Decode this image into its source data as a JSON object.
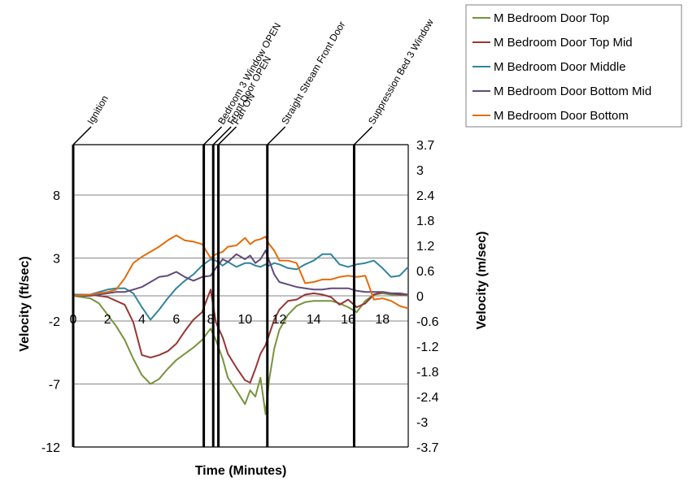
{
  "chart_data": {
    "type": "line",
    "xlabel": "Time (Minutes)",
    "ylabel": "Velocity (ft/sec)",
    "ylabel_right": "Velocity (m/sec)",
    "xlim": [
      0,
      19.5
    ],
    "ylim": [
      -12,
      12
    ],
    "ylim_right": [
      -3.7,
      3.7
    ],
    "x_ticks": [
      0,
      2,
      4,
      6,
      8,
      10,
      12,
      14,
      16,
      18
    ],
    "y_ticks": [
      -12,
      -7,
      -2,
      3,
      8
    ],
    "y_ticks_right": [
      "3.7",
      "3",
      "2.4",
      "1.8",
      "1.2",
      "0.6",
      "0",
      "-0.6",
      "-1.2",
      "-1.8",
      "-2.4",
      "-3",
      "-3.7"
    ],
    "grid": "horizontal",
    "legend_position": "top-right",
    "events": [
      {
        "label": "Ignition",
        "x": 0
      },
      {
        "label": "Bedroom 3 Window OPEN",
        "x": 7.6
      },
      {
        "label": "Front Door OPEN",
        "x": 8.15
      },
      {
        "label": "Fan ON",
        "x": 8.45
      },
      {
        "label": "Straight Stream Front Door",
        "x": 11.3
      },
      {
        "label": "Suppression Bed 3 Window",
        "x": 16.35
      }
    ],
    "series": [
      {
        "name": "M Bedroom Door Top",
        "color": "#77933C",
        "x": [
          0,
          1,
          1.5,
          2,
          2.5,
          3,
          3.5,
          4,
          4.5,
          5,
          5.5,
          6,
          6.5,
          7,
          7.5,
          8,
          8.3,
          8.7,
          9,
          9.5,
          10,
          10.3,
          10.6,
          10.9,
          11.2,
          11.4,
          11.7,
          12,
          12.5,
          13,
          13.5,
          14,
          14.5,
          15,
          15.5,
          16,
          16.5,
          17,
          17.5,
          18,
          18.5,
          19,
          19.5
        ],
        "y": [
          0,
          -0.2,
          -0.6,
          -1.5,
          -2.4,
          -3.5,
          -5,
          -6.3,
          -7,
          -6.6,
          -5.8,
          -5.1,
          -4.6,
          -4.1,
          -3.5,
          -2.6,
          -3.5,
          -5,
          -6.5,
          -7.5,
          -8.6,
          -7.5,
          -8,
          -6.5,
          -9.4,
          -6.7,
          -4.2,
          -2.7,
          -1.5,
          -0.8,
          -0.5,
          -0.4,
          -0.4,
          -0.4,
          -0.6,
          -0.9,
          -1.3,
          -0.4,
          0.1,
          0.2,
          0.1,
          0.1,
          0
        ]
      },
      {
        "name": "M Bedroom Door Top Mid",
        "color": "#953735",
        "x": [
          0,
          1,
          1.5,
          2,
          2.5,
          3,
          3.5,
          4,
          4.5,
          5,
          5.5,
          6,
          6.5,
          7,
          7.5,
          8,
          8.3,
          8.7,
          9,
          9.5,
          10,
          10.3,
          10.6,
          10.9,
          11.2,
          11.4,
          11.7,
          12,
          12.5,
          13,
          13.5,
          14,
          14.5,
          15,
          15.5,
          16,
          16.5,
          17,
          17.5,
          18,
          18.5,
          19,
          19.5
        ],
        "y": [
          0,
          0.1,
          0,
          -0.1,
          -0.4,
          -0.7,
          -2.1,
          -4.7,
          -4.9,
          -4.7,
          -4.4,
          -3.8,
          -2.8,
          -1.9,
          -1.3,
          0.5,
          -2.1,
          -3.3,
          -4.6,
          -5.7,
          -6.7,
          -6.9,
          -5.8,
          -4.6,
          -3.9,
          -3.1,
          -1.9,
          -1.1,
          -0.4,
          -0.3,
          0.1,
          0.2,
          0.1,
          -0.1,
          -0.7,
          -0.3,
          -0.9,
          -0.6,
          0.1,
          0.3,
          0.2,
          0.1,
          0.1
        ]
      },
      {
        "name": "M Bedroom Door Middle",
        "color": "#31859C",
        "x": [
          0,
          1,
          1.5,
          2,
          2.5,
          3,
          3.5,
          4,
          4.5,
          5,
          5.5,
          6,
          6.5,
          7,
          7.5,
          8,
          8.3,
          8.7,
          9,
          9.5,
          10,
          10.3,
          10.6,
          10.9,
          11.2,
          11.4,
          11.7,
          12,
          12.5,
          13,
          13.5,
          14,
          14.5,
          15,
          15.5,
          16,
          16.5,
          17,
          17.5,
          18,
          18.5,
          19,
          19.5
        ],
        "y": [
          0.1,
          0.1,
          0.3,
          0.5,
          0.6,
          0.6,
          0.2,
          -0.9,
          -1.9,
          -1.1,
          -0.2,
          0.6,
          1.2,
          1.7,
          2.4,
          2.9,
          2.8,
          2.4,
          2.7,
          2.3,
          2.6,
          2.6,
          2.4,
          2.3,
          2.5,
          2.4,
          2.6,
          2.5,
          2.2,
          2.1,
          2.5,
          2.8,
          3.3,
          3.3,
          2.5,
          2.3,
          2.5,
          2.6,
          2.8,
          2.2,
          1.5,
          1.6,
          2.3
        ]
      },
      {
        "name": "M Bedroom Door Bottom Mid",
        "color": "#604A7B",
        "x": [
          0,
          1,
          1.5,
          2,
          2.5,
          3,
          3.5,
          4,
          4.5,
          5,
          5.5,
          6,
          6.5,
          7,
          7.5,
          8,
          8.3,
          8.7,
          9,
          9.5,
          10,
          10.3,
          10.6,
          10.9,
          11.2,
          11.4,
          11.7,
          12,
          12.5,
          13,
          13.5,
          14,
          14.5,
          15,
          15.5,
          16,
          16.5,
          17,
          17.5,
          18,
          18.5,
          19,
          19.5
        ],
        "y": [
          0,
          0,
          0.1,
          0.2,
          0.3,
          0.3,
          0.5,
          0.7,
          1.1,
          1.5,
          1.6,
          1.9,
          1.5,
          1.2,
          1.5,
          1.6,
          2.2,
          2.9,
          2.7,
          3.3,
          2.9,
          3.2,
          2.6,
          2.9,
          3.6,
          2.8,
          1.7,
          1.1,
          0.9,
          0.7,
          0.6,
          0.5,
          0.5,
          0.6,
          0.6,
          0.6,
          0.4,
          0.3,
          0.3,
          0.3,
          0.2,
          0.2,
          0.1
        ]
      },
      {
        "name": "M Bedroom Door Bottom",
        "color": "#E46C0A",
        "x": [
          0,
          1,
          1.5,
          2,
          2.5,
          3,
          3.5,
          4,
          4.5,
          5,
          5.5,
          6,
          6.5,
          7,
          7.5,
          8,
          8.3,
          8.7,
          9,
          9.5,
          10,
          10.3,
          10.6,
          10.9,
          11.2,
          11.4,
          11.7,
          12,
          12.5,
          13,
          13.5,
          14,
          14.5,
          15,
          15.5,
          16,
          16.5,
          17,
          17.5,
          18,
          18.5,
          19,
          19.5
        ],
        "y": [
          0,
          0.1,
          0.2,
          0.3,
          0.5,
          1.4,
          2.6,
          3.1,
          3.5,
          3.9,
          4.4,
          4.8,
          4.4,
          4.3,
          4.1,
          3.0,
          3.3,
          3.5,
          3.9,
          4.0,
          4.6,
          4.1,
          4.4,
          4.5,
          4.7,
          4.1,
          3.6,
          2.8,
          2.8,
          2.6,
          1.0,
          1.1,
          1.3,
          1.3,
          1.5,
          1.6,
          1.5,
          1.6,
          -0.3,
          -0.2,
          -0.4,
          -0.8,
          -1.0
        ]
      }
    ]
  }
}
